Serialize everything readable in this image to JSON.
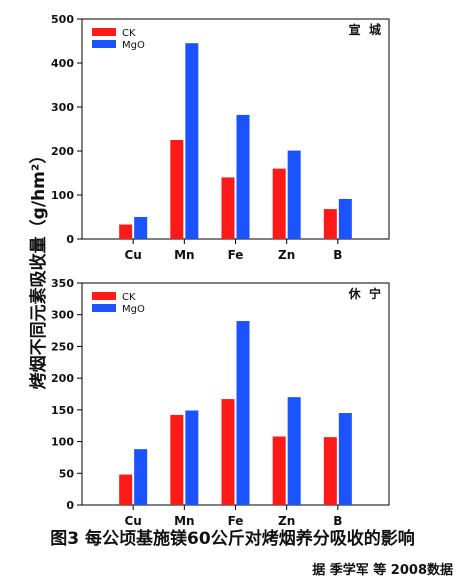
{
  "ylabel": "烤烟不同元素吸收量（g/hm²）",
  "caption": "图3 每公顷基施镁60公斤对烤烟养分吸收的影响",
  "source": "据 季学军 等 2008数据",
  "colors": {
    "CK": "#ff1a1a",
    "MgO": "#1a53ff"
  },
  "chart_data": [
    {
      "type": "bar",
      "panel_label": "宣  城",
      "categories": [
        "Cu",
        "Mn",
        "Fe",
        "Zn",
        "B"
      ],
      "series": [
        {
          "name": "CK",
          "values": [
            33,
            225,
            140,
            160,
            68
          ]
        },
        {
          "name": "MgO",
          "values": [
            50,
            445,
            282,
            201,
            91
          ]
        }
      ],
      "ylim": [
        0,
        500
      ],
      "yticks": [
        "0",
        "100",
        "200",
        "300",
        "400",
        "500"
      ],
      "legend": "top-left",
      "grid": false
    },
    {
      "type": "bar",
      "panel_label": "休  宁",
      "categories": [
        "Cu",
        "Mn",
        "Fe",
        "Zn",
        "B"
      ],
      "series": [
        {
          "name": "CK",
          "values": [
            48,
            142,
            167,
            108,
            107
          ]
        },
        {
          "name": "MgO",
          "values": [
            88,
            149,
            290,
            170,
            145
          ]
        }
      ],
      "ylim": [
        0,
        350
      ],
      "yticks": [
        "0",
        "50",
        "100",
        "150",
        "200",
        "250",
        "300",
        "350"
      ],
      "legend": "top-left",
      "grid": false
    }
  ]
}
